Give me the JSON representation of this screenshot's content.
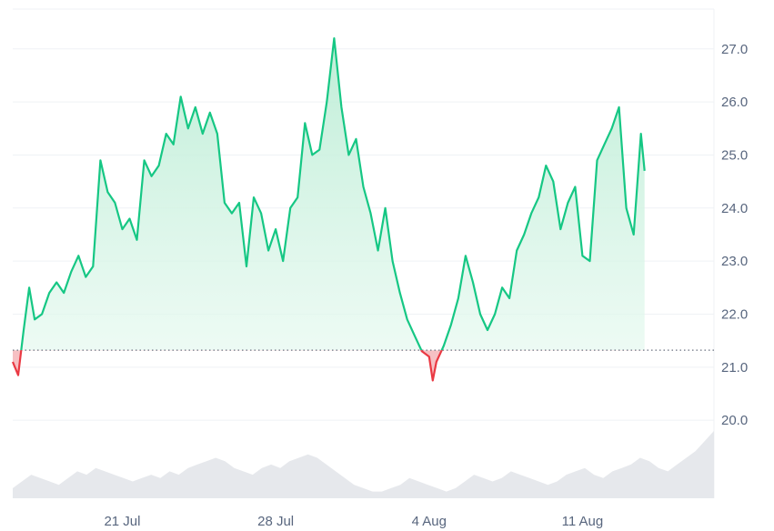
{
  "chart_data": {
    "type": "area",
    "title": "",
    "xlabel": "",
    "ylabel": "",
    "baseline": 21.32,
    "ylim": [
      19.9,
      27.75
    ],
    "xlim": [
      "2024-07-16",
      "2024-08-17"
    ],
    "yticks": [
      "27.0",
      "26.0",
      "25.0",
      "24.0",
      "23.0",
      "22.0",
      "21.0",
      "20.0"
    ],
    "xticks": [
      {
        "label": "21 Jul",
        "date": "2024-07-21"
      },
      {
        "label": "28 Jul",
        "date": "2024-07-28"
      },
      {
        "label": "4 Aug",
        "date": "2024-08-04"
      },
      {
        "label": "11 Aug",
        "date": "2024-08-11"
      }
    ],
    "grid": true,
    "colors": {
      "above_line": "#16c784",
      "below_line": "#ea3943",
      "above_fill_top": "#b8ecd3",
      "below_fill": "#f6c0c3",
      "volume_fill": "#e6e8ec",
      "baseline_dots": "#6b7280",
      "grid": "#eff2f5",
      "tick_text": "#58667e"
    },
    "series": [
      {
        "points": [
          [
            "2024-07-16",
            21.1
          ],
          [
            "2024-07-16T06",
            20.85
          ],
          [
            "2024-07-16T12",
            21.7
          ],
          [
            "2024-07-16T18",
            22.5
          ],
          [
            "2024-07-17",
            21.9
          ],
          [
            "2024-07-17T08",
            22.0
          ],
          [
            "2024-07-17T16",
            22.4
          ],
          [
            "2024-07-18",
            22.6
          ],
          [
            "2024-07-18T08",
            22.4
          ],
          [
            "2024-07-18T16",
            22.8
          ],
          [
            "2024-07-19",
            23.1
          ],
          [
            "2024-07-19T08",
            22.7
          ],
          [
            "2024-07-19T16",
            22.9
          ],
          [
            "2024-07-20",
            24.9
          ],
          [
            "2024-07-20T08",
            24.3
          ],
          [
            "2024-07-20T16",
            24.1
          ],
          [
            "2024-07-21",
            23.6
          ],
          [
            "2024-07-21T08",
            23.8
          ],
          [
            "2024-07-21T16",
            23.4
          ],
          [
            "2024-07-22",
            24.9
          ],
          [
            "2024-07-22T08",
            24.6
          ],
          [
            "2024-07-22T16",
            24.8
          ],
          [
            "2024-07-23",
            25.4
          ],
          [
            "2024-07-23T08",
            25.2
          ],
          [
            "2024-07-23T16",
            26.1
          ],
          [
            "2024-07-24",
            25.5
          ],
          [
            "2024-07-24T08",
            25.9
          ],
          [
            "2024-07-24T16",
            25.4
          ],
          [
            "2024-07-25",
            25.8
          ],
          [
            "2024-07-25T08",
            25.4
          ],
          [
            "2024-07-25T16",
            24.1
          ],
          [
            "2024-07-26",
            23.9
          ],
          [
            "2024-07-26T08",
            24.1
          ],
          [
            "2024-07-26T16",
            22.9
          ],
          [
            "2024-07-27",
            24.2
          ],
          [
            "2024-07-27T08",
            23.9
          ],
          [
            "2024-07-27T16",
            23.2
          ],
          [
            "2024-07-28",
            23.6
          ],
          [
            "2024-07-28T08",
            23.0
          ],
          [
            "2024-07-28T16",
            24.0
          ],
          [
            "2024-07-29",
            24.2
          ],
          [
            "2024-07-29T08",
            25.6
          ],
          [
            "2024-07-29T16",
            25.0
          ],
          [
            "2024-07-30",
            25.1
          ],
          [
            "2024-07-30T08",
            26.0
          ],
          [
            "2024-07-30T16",
            27.2
          ],
          [
            "2024-07-31",
            25.9
          ],
          [
            "2024-07-31T08",
            25.0
          ],
          [
            "2024-07-31T16",
            25.3
          ],
          [
            "2024-08-01",
            24.4
          ],
          [
            "2024-08-01T08",
            23.9
          ],
          [
            "2024-08-01T16",
            23.2
          ],
          [
            "2024-08-02",
            24.0
          ],
          [
            "2024-08-02T08",
            23.0
          ],
          [
            "2024-08-02T16",
            22.4
          ],
          [
            "2024-08-03",
            21.9
          ],
          [
            "2024-08-03T08",
            21.6
          ],
          [
            "2024-08-03T16",
            21.3
          ],
          [
            "2024-08-04",
            21.2
          ],
          [
            "2024-08-04T04",
            20.75
          ],
          [
            "2024-08-04T08",
            21.1
          ],
          [
            "2024-08-04T16",
            21.4
          ],
          [
            "2024-08-05",
            21.8
          ],
          [
            "2024-08-05T08",
            22.3
          ],
          [
            "2024-08-05T16",
            23.1
          ],
          [
            "2024-08-06",
            22.6
          ],
          [
            "2024-08-06T08",
            22.0
          ],
          [
            "2024-08-06T16",
            21.7
          ],
          [
            "2024-08-07",
            22.0
          ],
          [
            "2024-08-07T08",
            22.5
          ],
          [
            "2024-08-07T16",
            22.3
          ],
          [
            "2024-08-08",
            23.2
          ],
          [
            "2024-08-08T08",
            23.5
          ],
          [
            "2024-08-08T16",
            23.9
          ],
          [
            "2024-08-09",
            24.2
          ],
          [
            "2024-08-09T08",
            24.8
          ],
          [
            "2024-08-09T16",
            24.5
          ],
          [
            "2024-08-10",
            23.6
          ],
          [
            "2024-08-10T08",
            24.1
          ],
          [
            "2024-08-10T16",
            24.4
          ],
          [
            "2024-08-11",
            23.1
          ],
          [
            "2024-08-11T08",
            23.0
          ],
          [
            "2024-08-11T16",
            24.9
          ],
          [
            "2024-08-12",
            25.2
          ],
          [
            "2024-08-12T08",
            25.5
          ],
          [
            "2024-08-12T16",
            25.9
          ],
          [
            "2024-08-13",
            24.0
          ],
          [
            "2024-08-13T08",
            23.5
          ],
          [
            "2024-08-13T16",
            25.4
          ],
          [
            "2024-08-13T20",
            24.7
          ]
        ]
      }
    ],
    "volume": [
      3,
      5,
      7,
      6,
      5,
      4,
      6,
      8,
      7,
      9,
      8,
      7,
      6,
      5,
      6,
      7,
      6,
      8,
      7,
      9,
      10,
      11,
      12,
      11,
      9,
      8,
      7,
      9,
      10,
      9,
      11,
      12,
      13,
      12,
      10,
      8,
      6,
      4,
      3,
      2,
      2,
      3,
      4,
      6,
      5,
      4,
      3,
      2,
      3,
      5,
      7,
      6,
      5,
      6,
      8,
      7,
      6,
      5,
      4,
      5,
      7,
      8,
      9,
      7,
      6,
      8,
      9,
      10,
      12,
      11,
      9,
      8,
      10,
      12,
      14,
      17,
      20
    ]
  }
}
